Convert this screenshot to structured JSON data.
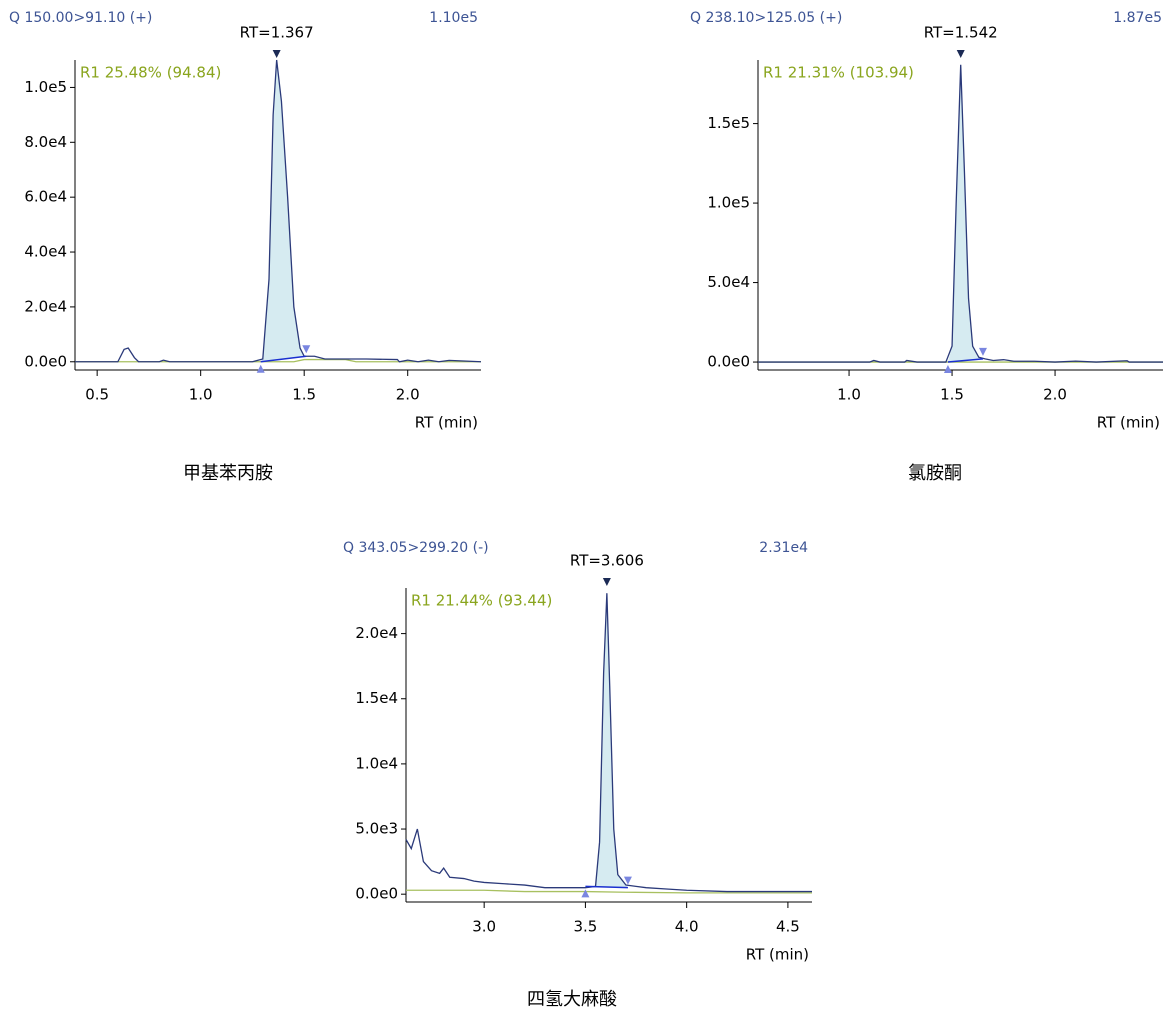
{
  "chart_data": [
    {
      "type": "line",
      "title": "Q 150.00>91.10 (+)",
      "intensity": "1.10e5",
      "rt_label": "RT=1.367",
      "annotation": "R1 25.48% (94.84)",
      "x_label": "RT (min)",
      "caption": "甲基苯丙胺",
      "xlim": [
        0.393,
        2.354
      ],
      "ylim": [
        -3000,
        110000
      ],
      "xticks": [
        0.5,
        {
          "value": 1,
          "label": "1.0"
        },
        1.5,
        {
          "value": 2,
          "label": "2.0"
        }
      ],
      "yticks": [
        {
          "value": 0,
          "label": "0.0e0"
        },
        {
          "value": 20000,
          "label": "2.0e4"
        },
        {
          "value": 40000,
          "label": "4.0e4"
        },
        {
          "value": 60000,
          "label": "6.0e4"
        },
        {
          "value": 80000,
          "label": "8.0e4"
        },
        {
          "value": 100000,
          "label": "1.0e5"
        }
      ],
      "series": [
        {
          "color": "#2b3a7a",
          "x": [
            0.393,
            0.6,
            0.63,
            0.65,
            0.68,
            0.7,
            0.8,
            0.82,
            0.85,
            1.25,
            1.3,
            1.33,
            1.35,
            1.367,
            1.39,
            1.42,
            1.45,
            1.48,
            1.5,
            1.55,
            1.6,
            1.8,
            1.95,
            1.96,
            2.0,
            2.05,
            2.1,
            2.15,
            2.2,
            2.354
          ],
          "values": [
            0,
            0,
            4500,
            5000,
            1500,
            0,
            0,
            600,
            0,
            0,
            1000,
            30000,
            90000,
            110000,
            95000,
            60000,
            20000,
            5000,
            2000,
            2000,
            1000,
            1000,
            800,
            0,
            600,
            0,
            600,
            0,
            500,
            0
          ]
        },
        {
          "color": "#a8c060",
          "x": [
            0.393,
            1.45,
            1.5,
            1.7,
            1.75,
            2.354
          ],
          "values": [
            0,
            0,
            800,
            800,
            0,
            0
          ]
        }
      ],
      "peak": {
        "rt": 1.367,
        "start": 1.29,
        "end": 1.51,
        "baseline": [
          0,
          2000
        ],
        "fill": "#d6ebf1",
        "line_color": "#1a2fd0",
        "apex_color": "#1b2a55",
        "edge_color": "#7a86e0"
      }
    },
    {
      "type": "line",
      "title": "Q 238.10>125.05 (+)",
      "intensity": "1.87e5",
      "rt_label": "RT=1.542",
      "annotation": "R1 21.31% (103.94)",
      "x_label": "RT (min)",
      "caption": "氯胺酮",
      "xlim": [
        0.558,
        2.524
      ],
      "ylim": [
        -5000,
        190000
      ],
      "xticks": [
        {
          "value": 1,
          "label": "1.0"
        },
        1.5,
        {
          "value": 2,
          "label": "2.0"
        }
      ],
      "yticks": [
        {
          "value": 0,
          "label": "0.0e0"
        },
        {
          "value": 50000,
          "label": "5.0e4"
        },
        {
          "value": 100000,
          "label": "1.0e5"
        },
        {
          "value": 150000,
          "label": "1.5e5"
        }
      ],
      "series": [
        {
          "color": "#2b3a7a",
          "x": [
            0.558,
            1.1,
            1.12,
            1.15,
            1.27,
            1.28,
            1.33,
            1.47,
            1.5,
            1.52,
            1.542,
            1.56,
            1.58,
            1.6,
            1.63,
            1.66,
            1.7,
            1.75,
            1.8,
            1.9,
            2.0,
            2.1,
            2.2,
            2.35,
            2.36,
            2.524
          ],
          "values": [
            0,
            0,
            1000,
            0,
            0,
            1000,
            0,
            0,
            10000,
            100000,
            187000,
            120000,
            40000,
            10000,
            3000,
            2000,
            1000,
            1500,
            500,
            500,
            0,
            600,
            0,
            800,
            0,
            0
          ]
        },
        {
          "color": "#a8c060",
          "x": [
            0.558,
            2.524
          ],
          "values": [
            0,
            0
          ]
        }
      ],
      "peak": {
        "rt": 1.542,
        "start": 1.48,
        "end": 1.65,
        "baseline": [
          0,
          2000
        ],
        "fill": "#d6ebf1",
        "line_color": "#1a2fd0",
        "apex_color": "#1b2a55",
        "edge_color": "#7a86e0"
      }
    },
    {
      "type": "line",
      "title": "Q 343.05>299.20 (-)",
      "intensity": "2.31e4",
      "rt_label": "RT=3.606",
      "annotation": "R1 21.44% (93.44)",
      "x_label": "RT (min)",
      "caption": "四氢大麻酸",
      "xlim": [
        2.614,
        4.619
      ],
      "ylim": [
        -600,
        23500
      ],
      "xticks": [
        {
          "value": 3,
          "label": "3.0"
        },
        3.5,
        {
          "value": 4,
          "label": "4.0"
        },
        4.5
      ],
      "yticks": [
        {
          "value": 0,
          "label": "0.0e0"
        },
        {
          "value": 5000,
          "label": "5.0e3"
        },
        {
          "value": 10000,
          "label": "1.0e4"
        },
        {
          "value": 15000,
          "label": "1.5e4"
        },
        {
          "value": 20000,
          "label": "2.0e4"
        }
      ],
      "series": [
        {
          "color": "#2b3a7a",
          "x": [
            2.614,
            2.64,
            2.67,
            2.7,
            2.74,
            2.78,
            2.8,
            2.83,
            2.9,
            2.95,
            3.0,
            3.1,
            3.2,
            3.3,
            3.4,
            3.5,
            3.55,
            3.57,
            3.59,
            3.606,
            3.62,
            3.64,
            3.66,
            3.7,
            3.8,
            3.9,
            4.0,
            4.2,
            4.4,
            4.619
          ],
          "values": [
            4200,
            3500,
            5000,
            2500,
            1800,
            1600,
            2000,
            1300,
            1200,
            1000,
            900,
            800,
            700,
            500,
            500,
            500,
            600,
            4000,
            17000,
            23100,
            16000,
            5000,
            1500,
            700,
            500,
            400,
            300,
            200,
            200,
            200
          ]
        },
        {
          "color": "#a8c060",
          "x": [
            2.614,
            3.0,
            3.2,
            3.5,
            3.7,
            4.0,
            4.619
          ],
          "values": [
            300,
            300,
            200,
            200,
            150,
            100,
            100
          ]
        }
      ],
      "peak": {
        "rt": 3.606,
        "start": 3.5,
        "end": 3.71,
        "baseline": [
          600,
          500
        ],
        "fill": "#d6ebf1",
        "line_color": "#1a2fd0",
        "apex_color": "#1b2a55",
        "edge_color": "#7a86e0"
      }
    }
  ]
}
